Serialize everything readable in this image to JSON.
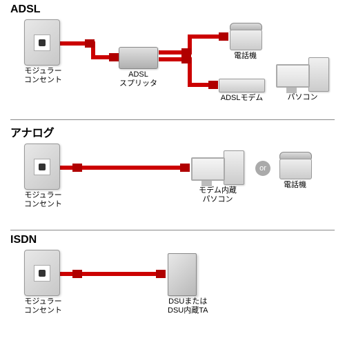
{
  "colors": {
    "cable": "#cc0000",
    "cable_width": 6,
    "plug_fill": "#b00000"
  },
  "sections": {
    "adsl": {
      "title": "ADSL",
      "devices": {
        "outlet": {
          "label": "モジュラー\nコンセント"
        },
        "splitter": {
          "label": "ADSL\nスプリッタ"
        },
        "phone": {
          "label": "電話機"
        },
        "modem": {
          "label": "ADSLモデム"
        },
        "pc": {
          "label": "パソコン"
        }
      }
    },
    "analog": {
      "title": "アナログ",
      "devices": {
        "outlet": {
          "label": "モジュラー\nコンセント"
        },
        "pc": {
          "label": "モデム内蔵\nパソコン"
        },
        "or": {
          "label": "or"
        },
        "phone": {
          "label": "電話機"
        }
      }
    },
    "isdn": {
      "title": "ISDN",
      "devices": {
        "outlet": {
          "label": "モジュラー\nコンセント"
        },
        "dsu": {
          "label": "DSUまたは\nDSU内蔵TA"
        }
      }
    }
  }
}
